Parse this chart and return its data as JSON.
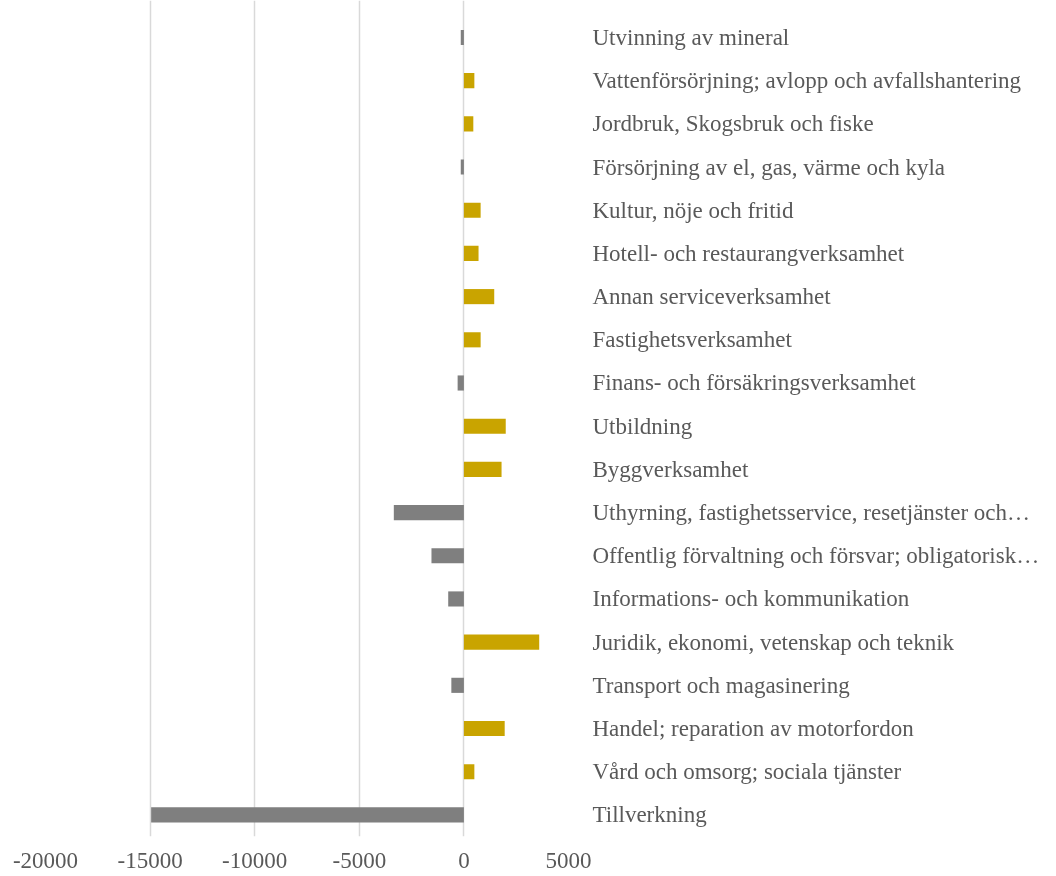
{
  "chart_data": {
    "type": "bar",
    "orientation": "horizontal",
    "categories": [
      "Utvinning av mineral",
      "Vattenförsörjning; avlopp och avfallshantering",
      "Jordbruk, Skogsbruk och fiske",
      "Försörjning av el, gas, värme och kyla",
      "Kultur, nöje och fritid",
      "Hotell- och restaurangverksamhet",
      "Annan serviceverksamhet",
      "Fastighetsverksamhet",
      "Finans- och försäkringsverksamhet",
      "Utbildning",
      "Byggverksamhet",
      "Uthyrning, fastighetsservice, resetjänster och…",
      "Offentlig förvaltning och försvar; obligatorisk…",
      "Informations- och kommunikation",
      "Juridik, ekonomi, vetenskap och teknik",
      "Transport och magasinering",
      "Handel; reparation av motorfordon",
      "Vård och omsorg; sociala tjänster",
      "Tillverkning"
    ],
    "values": [
      -150,
      500,
      450,
      -150,
      800,
      700,
      1450,
      800,
      -300,
      2000,
      1800,
      -3350,
      -1550,
      -750,
      3600,
      -600,
      1950,
      500,
      -14950
    ],
    "colors": [
      "#7f7f7f",
      "#c9a400",
      "#c9a400",
      "#7f7f7f",
      "#c9a400",
      "#c9a400",
      "#c9a400",
      "#c9a400",
      "#7f7f7f",
      "#c9a400",
      "#c9a400",
      "#7f7f7f",
      "#7f7f7f",
      "#7f7f7f",
      "#c9a400",
      "#7f7f7f",
      "#c9a400",
      "#c9a400",
      "#7f7f7f"
    ],
    "xlim": [
      -20000,
      5000
    ],
    "xticks": [
      -20000,
      -15000,
      -10000,
      -5000,
      0,
      5000
    ],
    "grid": "x"
  }
}
